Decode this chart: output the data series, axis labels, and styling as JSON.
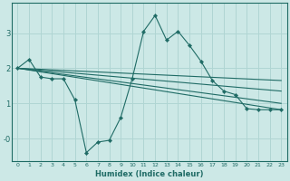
{
  "xlabel": "Humidex (Indice chaleur)",
  "bg_color": "#cce8e6",
  "grid_color": "#b0d5d3",
  "line_color": "#1f6b65",
  "xlim": [
    -0.5,
    23.5
  ],
  "ylim": [
    -0.65,
    3.85
  ],
  "yticks": [
    0,
    1,
    2,
    3
  ],
  "ytick_labels": [
    "-0",
    "1",
    "2",
    "3"
  ],
  "xticks": [
    0,
    1,
    2,
    3,
    4,
    5,
    6,
    7,
    8,
    9,
    10,
    11,
    12,
    13,
    14,
    15,
    16,
    17,
    18,
    19,
    20,
    21,
    22,
    23
  ],
  "main_series": {
    "x": [
      0,
      1,
      2,
      3,
      4,
      5,
      6,
      7,
      8,
      9,
      10,
      11,
      12,
      13,
      14,
      15,
      16,
      17,
      18,
      19,
      20,
      21,
      22,
      23
    ],
    "y": [
      2.0,
      2.25,
      1.75,
      1.7,
      1.7,
      1.1,
      -0.4,
      -0.1,
      -0.05,
      0.6,
      1.7,
      3.05,
      3.5,
      2.8,
      3.05,
      2.65,
      2.2,
      1.65,
      1.35,
      1.25,
      0.85,
      0.82,
      0.82,
      0.82
    ]
  },
  "trend_lines": [
    {
      "x": [
        0,
        23
      ],
      "y": [
        2.0,
        1.65
      ]
    },
    {
      "x": [
        0,
        23
      ],
      "y": [
        2.0,
        1.35
      ]
    },
    {
      "x": [
        0,
        23
      ],
      "y": [
        2.0,
        1.0
      ]
    },
    {
      "x": [
        0,
        23
      ],
      "y": [
        2.0,
        0.82
      ]
    }
  ]
}
